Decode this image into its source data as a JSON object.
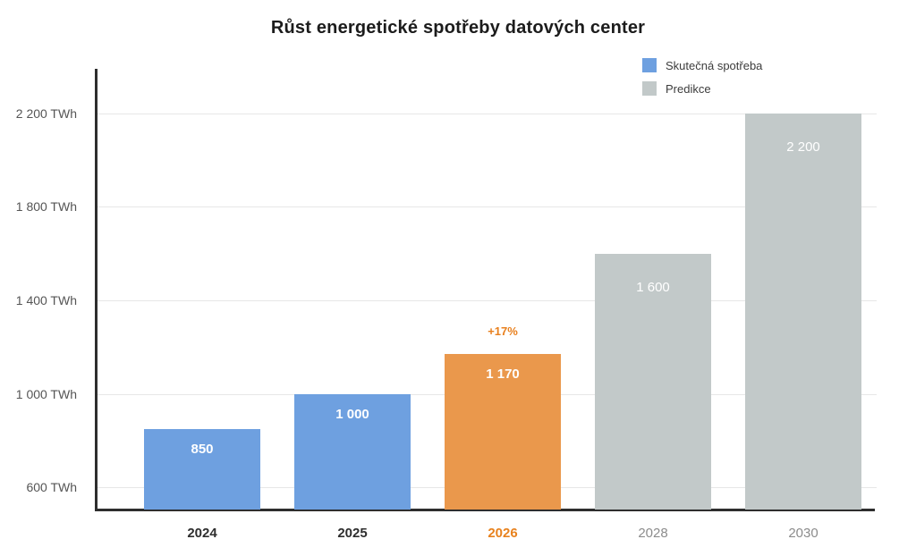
{
  "chart_data": {
    "type": "bar",
    "title": "Růst energetické spotřeby datových center",
    "unit": "TWh",
    "categories": [
      "2024",
      "2025",
      "2026",
      "2028",
      "2030"
    ],
    "bars": [
      {
        "year": "2024",
        "value": 850,
        "label": "850",
        "group": "actual"
      },
      {
        "year": "2025",
        "value": 1000,
        "label": "1 000",
        "group": "actual"
      },
      {
        "year": "2026",
        "value": 1170,
        "label": "1 170",
        "group": "highlight",
        "annotation": "+17%"
      },
      {
        "year": "2028",
        "value": 1600,
        "label": "1 600",
        "group": "prediction"
      },
      {
        "year": "2030",
        "value": 2200,
        "label": "2 200",
        "group": "prediction"
      }
    ],
    "y_axis": {
      "ticks": [
        {
          "value": 600,
          "label": "600 TWh"
        },
        {
          "value": 1000,
          "label": "1 000 TWh"
        },
        {
          "value": 1400,
          "label": "1 400 TWh"
        },
        {
          "value": 1800,
          "label": "1 800 TWh"
        },
        {
          "value": 2200,
          "label": "2 200 TWh"
        }
      ],
      "baseline_value": 505,
      "grid": true
    },
    "legend": [
      {
        "label": "Skutečná spotřeba",
        "color_key": "actual"
      },
      {
        "label": "Predikce",
        "color_key": "prediction"
      }
    ],
    "legend_position": "top-right",
    "colors": {
      "actual": "#6EA0E0",
      "highlight": "#EA984C",
      "prediction": "#C2C9C9",
      "annotation_text": "#E8801E",
      "highlight_label": "#E8821E",
      "axis": "#2E2E2E",
      "grid": "#E7E7E7",
      "tick_text": "#555555",
      "x_label_actual": "#2E2E2E",
      "x_label_prediction": "#8C8C8C",
      "bar_value_text": "#FFFFFF"
    }
  }
}
